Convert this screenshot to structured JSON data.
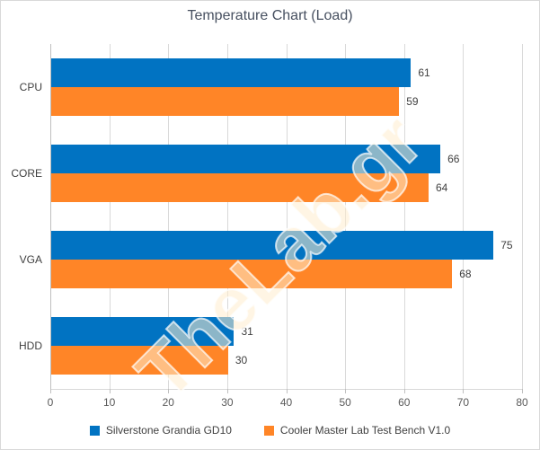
{
  "watermark": "TheLab.gr",
  "chart_data": {
    "type": "bar",
    "orientation": "horizontal",
    "title": "Temperature Chart (Load)",
    "categories": [
      "CPU",
      "CORE",
      "VGA",
      "HDD"
    ],
    "series": [
      {
        "name": "Silverstone Grandia GD10",
        "color": "#0173C2",
        "values": [
          61,
          66,
          75,
          31
        ]
      },
      {
        "name": "Cooler Master Lab Test Bench V1.0",
        "color": "#FF8527",
        "values": [
          59,
          64,
          68,
          30
        ]
      }
    ],
    "xlim": [
      0,
      80
    ],
    "x_ticks": [
      0,
      10,
      20,
      30,
      40,
      50,
      60,
      70,
      80
    ],
    "grid": true,
    "data_labels": true,
    "legend_position": "bottom",
    "colors": {
      "gridline": "#D9D9D9",
      "axis_line": "#BFBFBF",
      "tick_label": "#595959",
      "text": "#404040",
      "title": "#475060"
    }
  }
}
